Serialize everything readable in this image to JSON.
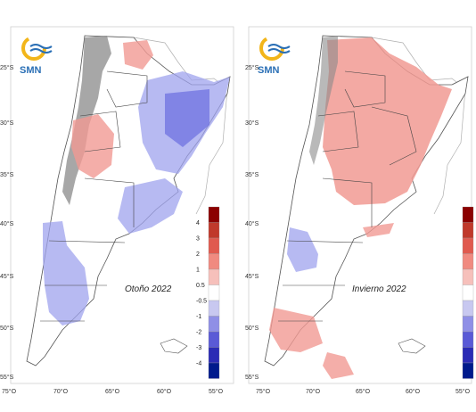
{
  "panels": [
    {
      "logo_text": "SMN",
      "season_label": "Otoño 2022",
      "lat_labels": [
        "25°S",
        "30°S",
        "35°S",
        "40°S",
        "45°S",
        "50°S",
        "55°S"
      ],
      "lon_labels": [
        "75°O",
        "70°O",
        "65°O",
        "60°O",
        "55°O"
      ],
      "colorbar_labels": [
        "4",
        "3",
        "2",
        "1",
        "0.5",
        "-0.5",
        "-1",
        "-2",
        "-3",
        "-4"
      ]
    },
    {
      "logo_text": "SMN",
      "season_label": "Invierno 2022",
      "lat_labels": [
        "25°S",
        "30°S",
        "35°S",
        "40°S",
        "45°S",
        "50°S",
        "55°S"
      ],
      "lon_labels": [
        "75°O",
        "70°O",
        "65°O",
        "60°O",
        "55°O"
      ],
      "colorbar_labels": []
    }
  ],
  "colors": {
    "colorbar": [
      "#8b0000",
      "#c0392b",
      "#e05a4f",
      "#f08a80",
      "#f6c0bb",
      "#ffffff",
      "#c8c8f0",
      "#8f8fe6",
      "#5a5ad6",
      "#2b2bb5",
      "#001a8c"
    ],
    "positive_anomaly": "#f19a93",
    "negative_anomaly": "#9fa3ee",
    "andes_relief": "#8a8a8a"
  }
}
